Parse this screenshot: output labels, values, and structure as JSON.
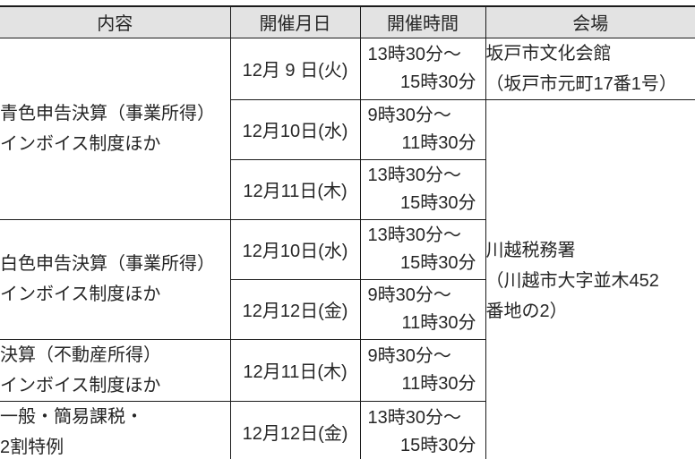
{
  "colors": {
    "header_background": "#e3e3e3",
    "border": "#1b1b1b",
    "text": "#262626"
  },
  "table": {
    "headers": {
      "content": "内容",
      "date": "開催月日",
      "time": "開催時間",
      "venue": "会場"
    },
    "rows": [
      {
        "content": "青色申告決算（事業所得）\nインボイス制度ほか",
        "date": "12月 9 日(火)",
        "time1": "13時30分～",
        "time2": "15時30分",
        "venue": "坂戸市文化会館\n（坂戸市元町17番1号）"
      },
      {
        "date": "12月10日(水)",
        "time1": "9時30分～",
        "time2": "11時30分",
        "venue": "川越税務署\n（川越市大字並木452\n番地の2）"
      },
      {
        "date": "12月11日(木)",
        "time1": "13時30分～",
        "time2": "15時30分"
      },
      {
        "content": "白色申告決算（事業所得）\nインボイス制度ほか",
        "date": "12月10日(水)",
        "time1": "13時30分～",
        "time2": "15時30分"
      },
      {
        "date": "12月12日(金)",
        "time1": "9時30分～",
        "time2": "11時30分"
      },
      {
        "content": "決算（不動産所得）\nインボイス制度ほか",
        "date": "12月11日(木)",
        "time1": "9時30分～",
        "time2": "11時30分"
      },
      {
        "content": "一般・簡易課税・\n2割特例",
        "date": "12月12日(金)",
        "time1": "13時30分～",
        "time2": "15時30分"
      }
    ]
  }
}
